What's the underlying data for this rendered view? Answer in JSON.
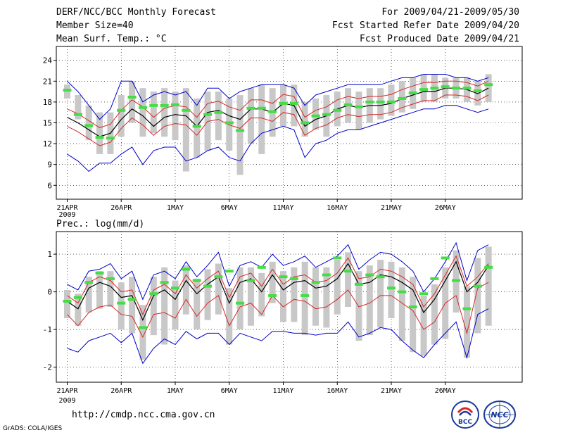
{
  "header": {
    "title": "DERF/NCC/BCC Monthly Forecast",
    "member_size": "Member Size=40",
    "variable1": "Mean Surf. Temp.: °C",
    "period": "For 2009/04/21-2009/05/30",
    "refer_date": "Fcst Started Refer Date 2009/04/20",
    "produced_date": "Fcst Produced Date 2009/04/21"
  },
  "footer": {
    "url": "http://cmdp.ncc.cma.gov.cn",
    "credit": "GrADS: COLA/IGES",
    "logo_bcc_text": "BCC",
    "logo_ncc_text": "NCC"
  },
  "colors": {
    "ensemble_mean": "#000000",
    "spread_band": "#d62728",
    "extreme_range": "#0000cc",
    "interquartile_box": "#c8c8c8",
    "observation": "#44dd44",
    "grid": "#000000"
  },
  "chart_data": [
    {
      "type": "line",
      "title": "Mean Surf. Temp.: °C",
      "ylim": [
        4,
        26
      ],
      "yticks": [
        6,
        9,
        12,
        15,
        18,
        21,
        24
      ],
      "xticks": [
        "21APR",
        "26APR",
        "1MAY",
        "6MAY",
        "11MAY",
        "16MAY",
        "21MAY",
        "26MAY"
      ],
      "xtick_days": [
        0,
        5,
        10,
        15,
        20,
        25,
        30,
        35
      ],
      "year_label": "2009",
      "n_days": 40,
      "mean": [
        15.8,
        15.0,
        14.0,
        13.0,
        13.5,
        15.5,
        17.0,
        16.0,
        14.5,
        15.8,
        16.2,
        16.0,
        14.5,
        16.5,
        16.8,
        16.0,
        15.5,
        17.0,
        17.0,
        16.5,
        17.8,
        17.5,
        14.5,
        15.5,
        16.0,
        17.0,
        17.5,
        17.2,
        17.5,
        17.5,
        17.8,
        18.5,
        19.0,
        19.5,
        19.5,
        20.0,
        20.0,
        19.8,
        19.2,
        20.0
      ],
      "upper": [
        17.0,
        16.3,
        15.3,
        14.3,
        14.8,
        16.8,
        18.3,
        17.3,
        15.8,
        17.1,
        17.5,
        17.3,
        15.8,
        17.8,
        18.1,
        17.3,
        16.8,
        18.3,
        18.3,
        17.8,
        19.1,
        18.8,
        15.8,
        16.8,
        17.3,
        18.3,
        18.8,
        18.5,
        18.8,
        18.8,
        19.1,
        19.8,
        20.3,
        20.8,
        20.8,
        21.0,
        21.0,
        20.8,
        20.3,
        21.0
      ],
      "lower": [
        14.5,
        13.7,
        12.7,
        11.7,
        12.2,
        14.2,
        15.7,
        14.7,
        13.2,
        14.5,
        14.9,
        14.7,
        13.2,
        15.2,
        15.5,
        14.7,
        14.2,
        15.7,
        15.7,
        15.2,
        16.5,
        16.2,
        13.2,
        14.2,
        14.7,
        15.7,
        16.2,
        15.9,
        16.2,
        16.2,
        16.5,
        17.2,
        17.7,
        18.2,
        18.2,
        19.0,
        19.0,
        18.8,
        18.2,
        19.0
      ],
      "max": [
        21.0,
        19.5,
        17.5,
        15.5,
        17.0,
        21.0,
        21.0,
        18.0,
        19.0,
        19.5,
        19.0,
        19.5,
        17.5,
        20.0,
        20.0,
        18.5,
        19.5,
        20.0,
        20.5,
        20.5,
        20.5,
        20.0,
        17.5,
        19.0,
        19.5,
        20.0,
        20.5,
        20.5,
        20.5,
        20.5,
        21.0,
        21.5,
        21.5,
        22.0,
        22.0,
        22.0,
        21.5,
        21.5,
        21.0,
        21.5
      ],
      "min": [
        10.5,
        9.5,
        8.0,
        9.2,
        9.2,
        10.5,
        11.5,
        9.0,
        11.0,
        11.5,
        11.5,
        9.5,
        10.0,
        11.0,
        11.5,
        10.0,
        9.5,
        12.0,
        13.5,
        14.0,
        14.5,
        14.0,
        10.0,
        12.0,
        12.5,
        13.5,
        14.0,
        14.0,
        14.5,
        15.0,
        15.5,
        16.0,
        16.5,
        17.0,
        17.0,
        17.5,
        17.5,
        17.0,
        16.5,
        17.0
      ],
      "box_top": [
        20.5,
        19.0,
        17.5,
        16.5,
        16.5,
        19.0,
        21.0,
        20.0,
        19.5,
        20.0,
        19.5,
        20.0,
        18.5,
        19.5,
        19.5,
        18.5,
        19.0,
        20.0,
        20.5,
        20.0,
        20.5,
        20.5,
        18.0,
        18.5,
        19.0,
        19.5,
        20.0,
        19.5,
        20.0,
        20.0,
        20.5,
        21.0,
        21.5,
        22.0,
        22.0,
        21.5,
        21.5,
        21.5,
        21.0,
        22.0
      ],
      "box_bottom": [
        18.5,
        15.5,
        12.5,
        10.5,
        10.5,
        13.0,
        15.0,
        13.0,
        13.5,
        13.0,
        12.5,
        8.0,
        10.0,
        11.0,
        12.5,
        11.0,
        7.5,
        12.0,
        10.5,
        13.0,
        14.5,
        14.5,
        13.0,
        14.0,
        13.0,
        14.5,
        15.0,
        14.0,
        15.0,
        15.5,
        16.0,
        16.5,
        17.0,
        18.0,
        18.0,
        18.5,
        18.5,
        18.0,
        17.5,
        18.0
      ],
      "obs": [
        19.7,
        16.2,
        14.6,
        12.9,
        12.8,
        16.8,
        18.7,
        17.2,
        17.5,
        17.5,
        17.6,
        16.8,
        14.5,
        16.2,
        16.5,
        15.0,
        13.9,
        17.1,
        17.1,
        16.6,
        17.8,
        17.8,
        15.0,
        16.0,
        16.2,
        16.8,
        17.6,
        17.3,
        18.0,
        18.0,
        18.0,
        18.5,
        19.3,
        19.8,
        20.0,
        20.2,
        20.0,
        20.0,
        19.6,
        20.5
      ]
    },
    {
      "type": "line",
      "title": "Prec.: log(mm/d)",
      "ylim": [
        -2.4,
        1.6
      ],
      "yticks": [
        -2,
        -1,
        0,
        1
      ],
      "xticks": [
        "21APR",
        "26APR",
        "1MAY",
        "6MAY",
        "11MAY",
        "16MAY",
        "21MAY",
        "26MAY"
      ],
      "xtick_days": [
        0,
        5,
        10,
        15,
        20,
        25,
        30,
        35
      ],
      "year_label": "2009",
      "n_days": 40,
      "mean": [
        -0.25,
        -0.45,
        0.1,
        0.25,
        0.15,
        -0.15,
        -0.1,
        -0.75,
        -0.1,
        0.05,
        -0.2,
        0.3,
        -0.05,
        0.2,
        0.4,
        -0.3,
        0.25,
        0.35,
        0.0,
        0.45,
        0.05,
        0.25,
        0.3,
        0.1,
        0.15,
        0.35,
        0.75,
        0.2,
        0.25,
        0.45,
        0.4,
        0.25,
        0.05,
        -0.55,
        -0.2,
        0.3,
        0.8,
        0.0,
        0.25,
        0.7
      ],
      "upper": [
        -0.1,
        -0.3,
        0.25,
        0.4,
        0.3,
        0.0,
        0.05,
        -0.6,
        0.05,
        0.2,
        -0.05,
        0.45,
        0.1,
        0.35,
        0.55,
        -0.15,
        0.4,
        0.5,
        0.15,
        0.6,
        0.2,
        0.4,
        0.45,
        0.25,
        0.3,
        0.5,
        0.9,
        0.35,
        0.4,
        0.6,
        0.55,
        0.4,
        0.2,
        -0.4,
        -0.05,
        0.45,
        0.95,
        0.15,
        0.4,
        0.75
      ],
      "lower": [
        -0.6,
        -0.9,
        -0.55,
        -0.4,
        -0.35,
        -0.6,
        -0.65,
        -1.2,
        -0.6,
        -0.55,
        -0.7,
        -0.2,
        -0.65,
        -0.3,
        -0.1,
        -0.9,
        -0.4,
        -0.3,
        -0.6,
        -0.1,
        -0.4,
        -0.2,
        -0.25,
        -0.45,
        -0.4,
        -0.2,
        0.05,
        -0.4,
        -0.3,
        -0.1,
        -0.1,
        -0.3,
        -0.5,
        -1.0,
        -0.8,
        -0.3,
        -0.1,
        -1.1,
        0.1,
        0.25
      ],
      "max": [
        0.2,
        0.05,
        0.55,
        0.6,
        0.75,
        0.35,
        0.55,
        -0.2,
        0.45,
        0.55,
        0.35,
        0.8,
        0.4,
        0.7,
        1.05,
        0.15,
        0.7,
        0.8,
        0.65,
        1.0,
        0.7,
        0.8,
        0.95,
        0.65,
        0.8,
        0.95,
        1.25,
        0.6,
        0.85,
        1.05,
        1.0,
        0.8,
        0.55,
        0.0,
        0.35,
        0.8,
        1.3,
        0.3,
        1.1,
        1.25
      ],
      "min": [
        -1.5,
        -1.6,
        -1.3,
        -1.2,
        -1.1,
        -1.35,
        -1.1,
        -1.9,
        -1.5,
        -1.25,
        -1.4,
        -1.05,
        -1.25,
        -1.1,
        -1.1,
        -1.4,
        -1.1,
        -1.2,
        -1.3,
        -1.05,
        -1.05,
        -1.1,
        -1.1,
        -1.15,
        -1.1,
        -1.1,
        -0.8,
        -1.2,
        -1.1,
        -0.95,
        -1.0,
        -1.3,
        -1.55,
        -1.75,
        -1.4,
        -1.1,
        -0.8,
        -1.75,
        -0.6,
        -0.45
      ],
      "box_top": [
        0.05,
        -0.05,
        0.4,
        0.55,
        0.55,
        0.25,
        0.4,
        -0.35,
        0.4,
        0.65,
        0.3,
        0.7,
        0.35,
        0.6,
        0.75,
        0.1,
        0.65,
        0.65,
        0.5,
        0.8,
        0.55,
        0.65,
        0.8,
        0.65,
        0.65,
        0.85,
        1.05,
        0.55,
        0.7,
        0.85,
        0.8,
        0.65,
        0.4,
        -0.1,
        0.2,
        0.65,
        1.1,
        0.15,
        0.9,
        1.2
      ],
      "box_bottom": [
        -0.7,
        -0.9,
        -0.55,
        -0.45,
        -0.4,
        -1.0,
        -1.1,
        -1.8,
        -1.15,
        -1.4,
        -1.0,
        -0.6,
        -1.0,
        -0.75,
        -0.6,
        -1.4,
        -1.0,
        -0.9,
        -0.65,
        -0.3,
        -0.8,
        -0.8,
        -1.15,
        -0.9,
        -0.95,
        -0.6,
        -0.4,
        -1.3,
        -1.15,
        -0.95,
        -0.7,
        -1.3,
        -1.6,
        -1.7,
        -1.4,
        -1.25,
        -0.55,
        -1.75,
        -1.1,
        -0.9
      ],
      "obs": [
        -0.25,
        -0.15,
        0.25,
        0.5,
        0.35,
        -0.3,
        -0.2,
        -0.95,
        -0.05,
        0.25,
        0.1,
        0.6,
        0.3,
        0.15,
        0.4,
        0.55,
        -0.3,
        0.3,
        0.65,
        -0.1,
        0.4,
        0.35,
        -0.1,
        0.25,
        0.45,
        0.9,
        0.55,
        0.2,
        0.45,
        0.4,
        0.1,
        0.0,
        -0.4,
        -0.05,
        0.35,
        0.9,
        0.3,
        -0.45,
        0.15,
        0.65
      ]
    }
  ]
}
